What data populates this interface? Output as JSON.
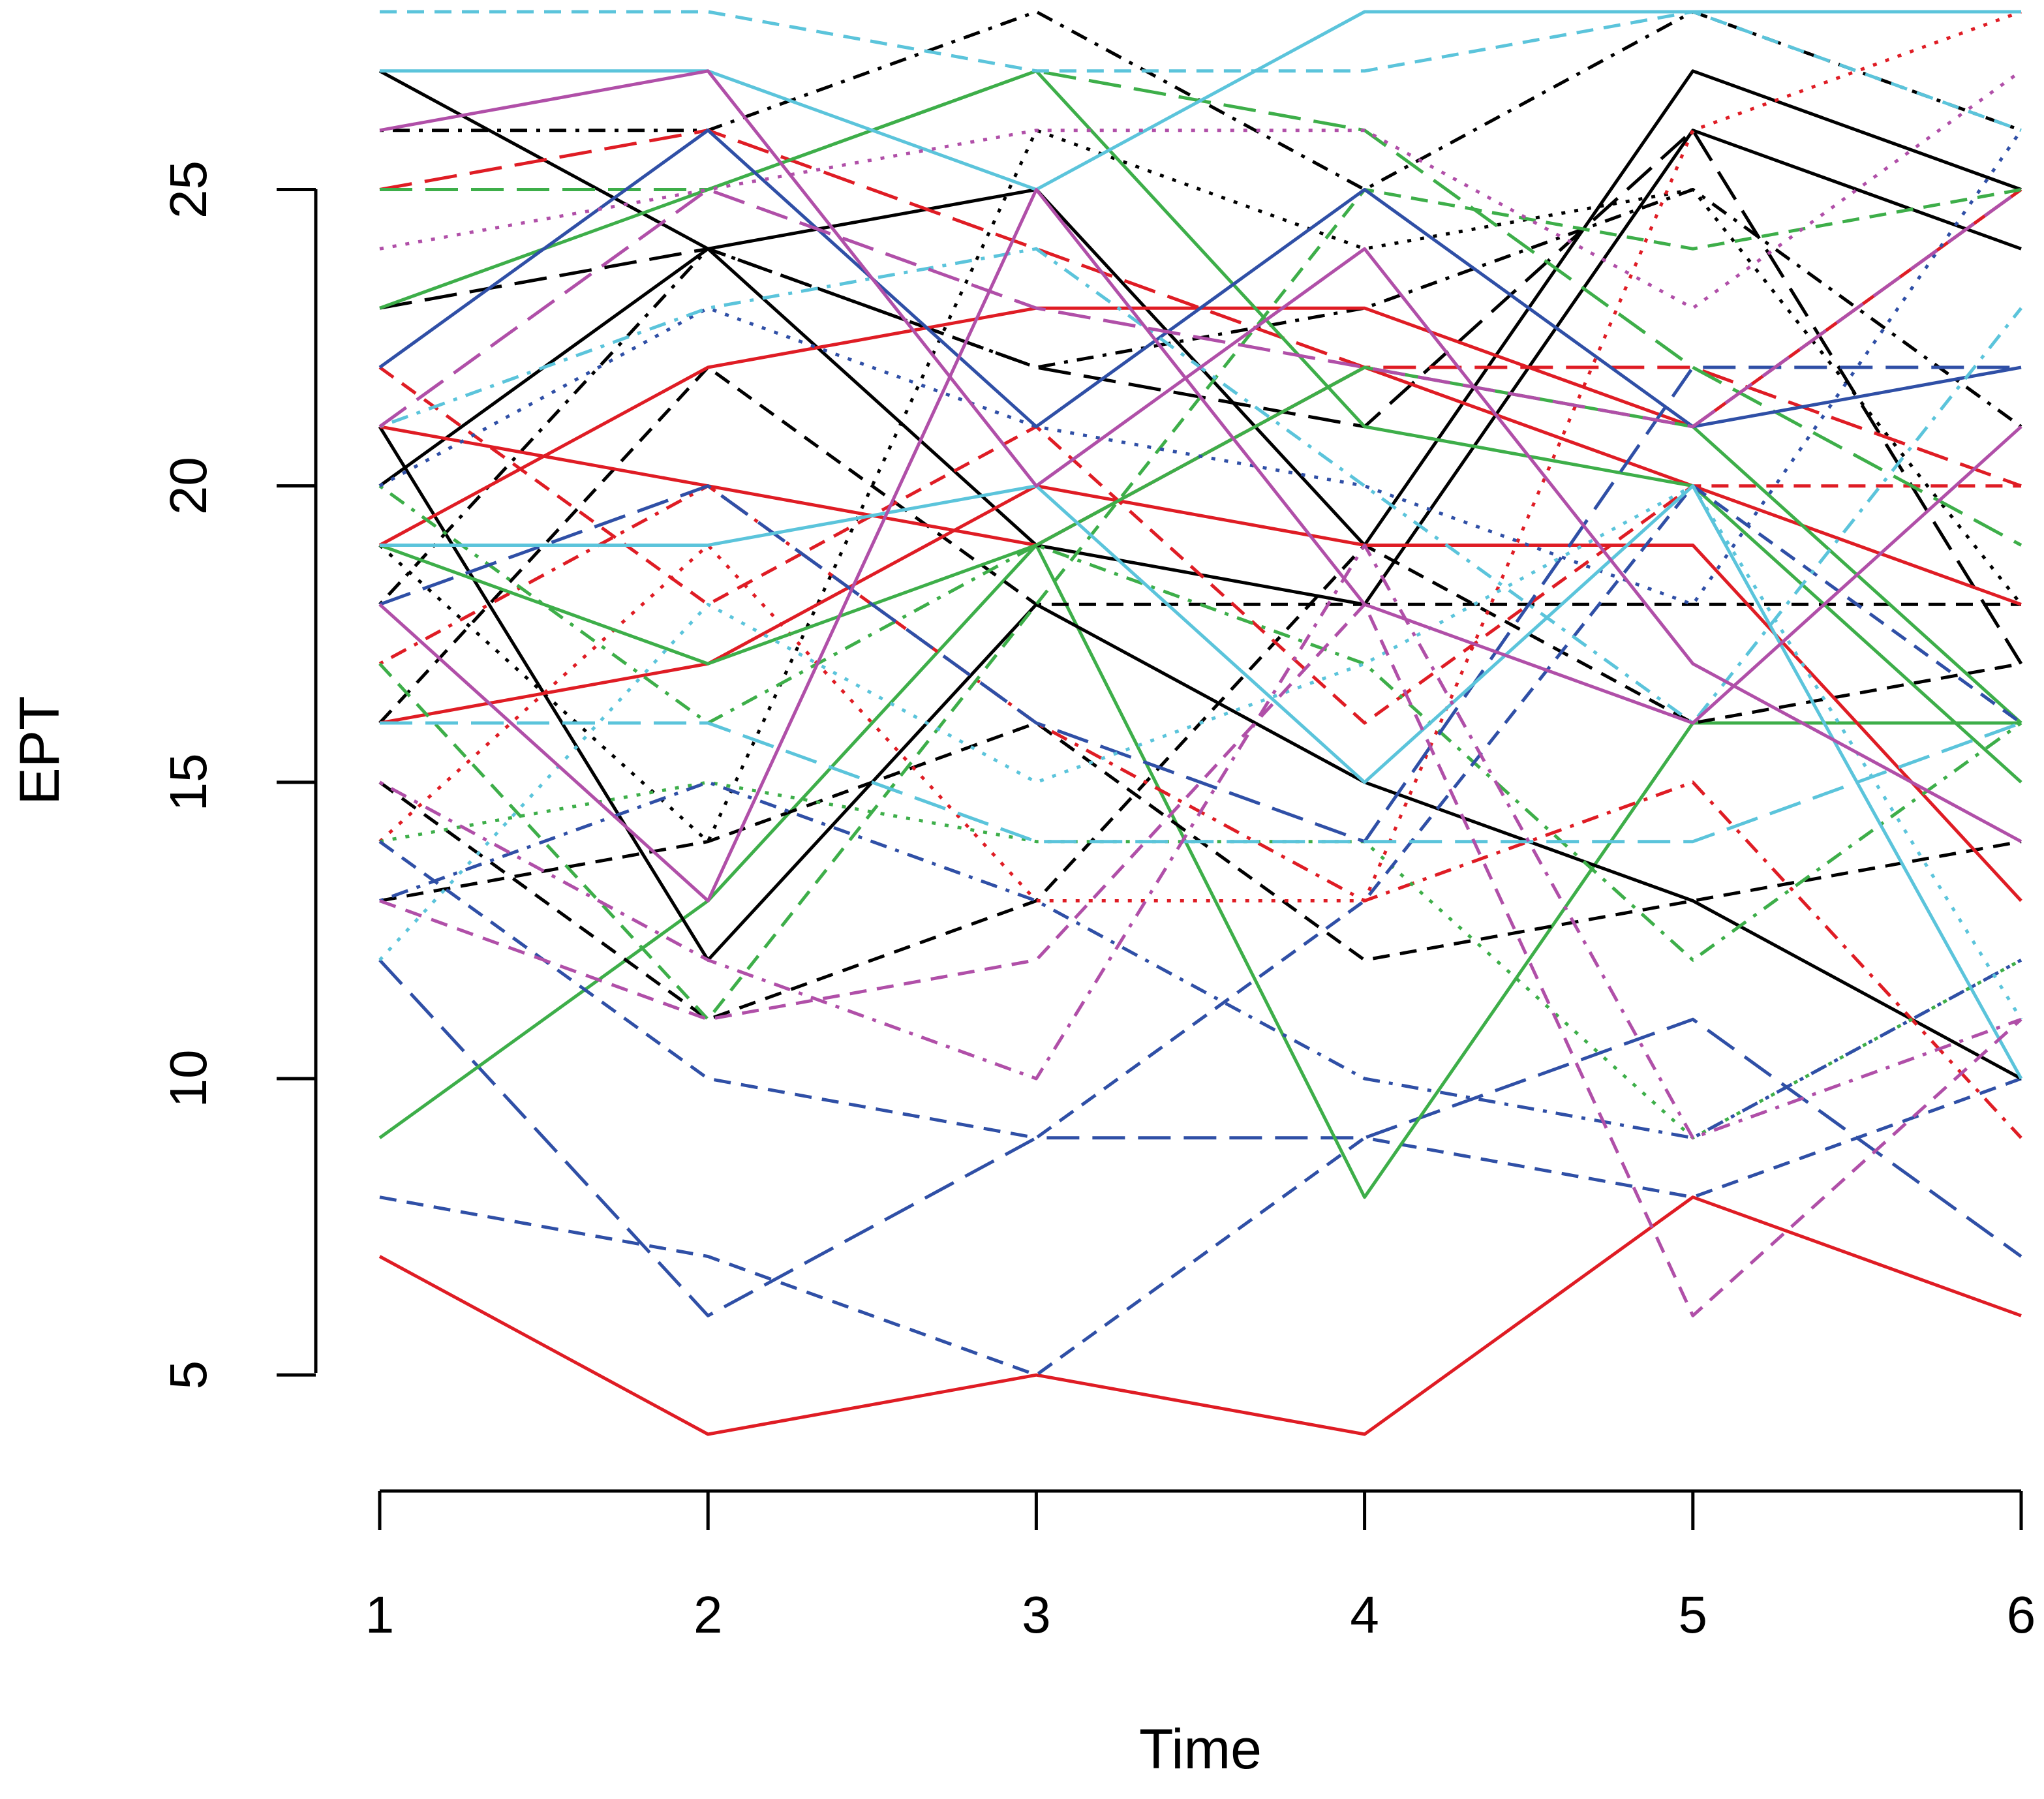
{
  "chart_data": {
    "type": "line",
    "xlabel": "Time",
    "ylabel": "EPT",
    "x": [
      1,
      2,
      3,
      4,
      5,
      6
    ],
    "xticks": [
      "1",
      "2",
      "3",
      "4",
      "5",
      "6"
    ],
    "yticks": [
      "5",
      "10",
      "15",
      "20",
      "25"
    ],
    "xlim": [
      1,
      6
    ],
    "ylim": [
      4,
      28
    ],
    "grid": false,
    "palette": {
      "black": "#000000",
      "red": "#DF1C24",
      "green": "#3DAE49",
      "blue": "#2F4FA6",
      "cyan": "#5BC4DB",
      "magenta": "#B04FA8"
    },
    "series": [
      {
        "color": "red",
        "dash": "solid",
        "values": [
          7,
          4,
          5,
          4,
          8,
          6
        ]
      },
      {
        "color": "blue",
        "dash": "dashed",
        "values": [
          8,
          7,
          5,
          9,
          8,
          10
        ]
      },
      {
        "color": "blue",
        "dash": "longdash",
        "values": [
          12,
          6,
          9,
          9,
          11,
          7
        ]
      },
      {
        "color": "green",
        "dash": "solid",
        "values": [
          9,
          13,
          19,
          8,
          16,
          16
        ]
      },
      {
        "color": "black",
        "dash": "solid",
        "values": [
          27,
          24,
          25,
          19,
          27,
          25
        ]
      },
      {
        "color": "black",
        "dash": "solid",
        "values": [
          21,
          12,
          18,
          15,
          13,
          10
        ]
      },
      {
        "color": "black",
        "dash": "solid",
        "values": [
          20,
          24,
          19,
          18,
          26,
          24
        ]
      },
      {
        "color": "black",
        "dash": "dashed",
        "values": [
          13,
          14,
          16,
          12,
          13,
          14
        ]
      },
      {
        "color": "black",
        "dash": "dashed",
        "values": [
          15,
          11,
          13,
          19,
          16,
          17
        ]
      },
      {
        "color": "black",
        "dash": "dotdash",
        "values": [
          26,
          26,
          28,
          25,
          28,
          26
        ]
      },
      {
        "color": "black",
        "dash": "dotdash",
        "values": [
          18,
          24,
          22,
          23,
          25,
          21
        ]
      },
      {
        "color": "black",
        "dash": "dotted",
        "values": [
          19,
          14,
          26,
          24,
          25,
          18
        ]
      },
      {
        "color": "black",
        "dash": "longdash",
        "values": [
          23,
          24,
          22,
          21,
          26,
          17
        ]
      },
      {
        "color": "black",
        "dash": "dashed",
        "values": [
          16,
          22,
          18,
          18,
          18,
          18
        ]
      },
      {
        "color": "red",
        "dash": "solid",
        "values": [
          19,
          22,
          23,
          23,
          21,
          25
        ]
      },
      {
        "color": "red",
        "dash": "solid",
        "values": [
          16,
          17,
          20,
          19,
          19,
          13
        ]
      },
      {
        "color": "red",
        "dash": "solid",
        "values": [
          21,
          20,
          19,
          22,
          20,
          18
        ]
      },
      {
        "color": "red",
        "dash": "dashed",
        "values": [
          22,
          18,
          21,
          16,
          20,
          20
        ]
      },
      {
        "color": "red",
        "dash": "dotted",
        "values": [
          14,
          19,
          13,
          13,
          26,
          28
        ]
      },
      {
        "color": "red",
        "dash": "dotdash",
        "values": [
          17,
          20,
          16,
          13,
          15,
          9
        ]
      },
      {
        "color": "red",
        "dash": "longdash",
        "values": [
          25,
          26,
          24,
          22,
          22,
          20
        ]
      },
      {
        "color": "green",
        "dash": "solid",
        "values": [
          23,
          25,
          27,
          21,
          20,
          15
        ]
      },
      {
        "color": "green",
        "dash": "solid",
        "values": [
          19,
          17,
          19,
          22,
          21,
          16
        ]
      },
      {
        "color": "green",
        "dash": "dashed",
        "values": [
          17,
          11,
          18,
          25,
          24,
          25
        ]
      },
      {
        "color": "green",
        "dash": "dotted",
        "values": [
          14,
          15,
          14,
          14,
          9,
          12
        ]
      },
      {
        "color": "green",
        "dash": "longdash",
        "values": [
          25,
          25,
          27,
          26,
          22,
          19
        ]
      },
      {
        "color": "green",
        "dash": "dotdash",
        "values": [
          20,
          16,
          19,
          17,
          12,
          16
        ]
      },
      {
        "color": "blue",
        "dash": "solid",
        "values": [
          22,
          26,
          21,
          25,
          21,
          22
        ]
      },
      {
        "color": "blue",
        "dash": "dashed",
        "values": [
          14,
          10,
          9,
          13,
          20,
          16
        ]
      },
      {
        "color": "blue",
        "dash": "dotdash",
        "values": [
          13,
          15,
          13,
          10,
          9,
          12
        ]
      },
      {
        "color": "blue",
        "dash": "dotted",
        "values": [
          20,
          23,
          21,
          20,
          18,
          26
        ]
      },
      {
        "color": "blue",
        "dash": "longdash",
        "values": [
          18,
          20,
          16,
          14,
          22,
          22
        ]
      },
      {
        "color": "cyan",
        "dash": "solid",
        "values": [
          27,
          27,
          25,
          28,
          28,
          28
        ]
      },
      {
        "color": "cyan",
        "dash": "solid",
        "values": [
          19,
          19,
          20,
          15,
          20,
          10
        ]
      },
      {
        "color": "cyan",
        "dash": "dashed",
        "values": [
          28,
          28,
          27,
          27,
          28,
          26
        ]
      },
      {
        "color": "cyan",
        "dash": "longdash",
        "values": [
          16,
          16,
          14,
          14,
          14,
          16
        ]
      },
      {
        "color": "cyan",
        "dash": "dotted",
        "values": [
          12,
          18,
          15,
          17,
          20,
          11
        ]
      },
      {
        "color": "cyan",
        "dash": "dotdash",
        "values": [
          21,
          23,
          24,
          20,
          16,
          23
        ]
      },
      {
        "color": "magenta",
        "dash": "solid",
        "values": [
          26,
          27,
          20,
          24,
          17,
          14
        ]
      },
      {
        "color": "magenta",
        "dash": "solid",
        "values": [
          18,
          13,
          25,
          18,
          16,
          21
        ]
      },
      {
        "color": "magenta",
        "dash": "dashed",
        "values": [
          13,
          11,
          12,
          18,
          6,
          11
        ]
      },
      {
        "color": "magenta",
        "dash": "dotted",
        "values": [
          24,
          25,
          26,
          26,
          23,
          27
        ]
      },
      {
        "color": "magenta",
        "dash": "dotdash",
        "values": [
          15,
          12,
          10,
          19,
          9,
          11
        ]
      },
      {
        "color": "magenta",
        "dash": "longdash",
        "values": [
          21,
          25,
          23,
          22,
          21,
          25
        ]
      }
    ]
  }
}
